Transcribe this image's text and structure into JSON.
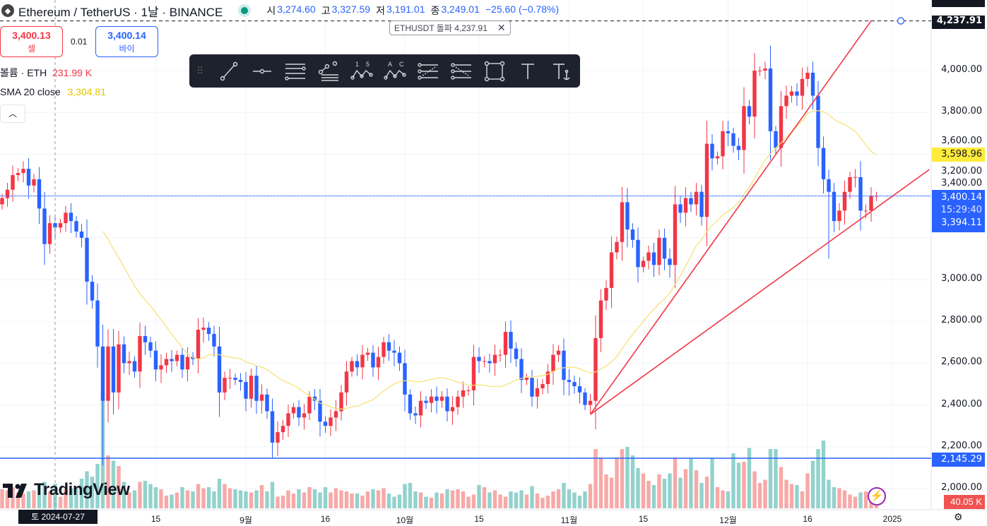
{
  "header": {
    "symbol": "Ethereum / TetherUS · 1날 · BINANCE",
    "o_label": "시",
    "o": "3,274.60",
    "h_label": "고",
    "h": "3,327.59",
    "l_label": "저",
    "l": "3,191.01",
    "c_label": "종",
    "c": "3,249.01",
    "change": "−25.60 (−0.78%)"
  },
  "trade": {
    "sell_price": "3,400.13",
    "sell_label": "셀",
    "spread": "0.01",
    "buy_price": "3,400.14",
    "buy_label": "바이"
  },
  "legend": {
    "volume_label": "볼륨 · ETH",
    "volume_value": "231.99 K",
    "sma_label": "SMA 20 close",
    "sma_value": "3,304.81"
  },
  "toolbar": {
    "tools": [
      "trend-line",
      "horizontal-ray",
      "parallel-channel",
      "pitchfork",
      "xabcd-pattern",
      "abcd-pattern",
      "long-position",
      "short-position",
      "rectangle",
      "text",
      "anchored-text"
    ]
  },
  "alert": {
    "label": "ETHUSDT 돌파 4,237.91",
    "close": "✕"
  },
  "price_axis": {
    "ticks": [
      "4,000.00",
      "3,800.00",
      "3,600.00",
      "3,400.00",
      "3,200.00",
      "3,000.00",
      "2,800.00",
      "2,600.00",
      "2,400.00",
      "2,200.00",
      "2,000.00"
    ],
    "alert_price": "4,237.91",
    "sma_price": "3,598.96",
    "last_price": "3,400.14",
    "countdown": "15:29:40",
    "last_close": "3,394.11",
    "hline_price": "2,145.29",
    "volume_last": "40.05 K"
  },
  "time_axis": {
    "crosshair_date": "토 2024-07-27",
    "labels": [
      {
        "t": "15",
        "i": 29
      },
      {
        "t": "9월",
        "i": 46
      },
      {
        "t": "16",
        "i": 61
      },
      {
        "t": "10월",
        "i": 76
      },
      {
        "t": "15",
        "i": 90
      },
      {
        "t": "11월",
        "i": 107
      },
      {
        "t": "15",
        "i": 121
      },
      {
        "t": "12월",
        "i": 137
      },
      {
        "t": "16",
        "i": 152
      },
      {
        "t": "2025",
        "i": 168
      }
    ]
  },
  "branding": {
    "logo": "TradingView"
  },
  "colors": {
    "up": "#f23645",
    "down": "#2962ff",
    "vol_up": "#f7a9a7",
    "vol_down": "#92d2cc",
    "sma": "#f7e27a",
    "drawing": "#f23645",
    "hline": "#2962ff"
  },
  "chart_data": {
    "type": "candlestick",
    "title": "Ethereum / TetherUS · 1D · BINANCE",
    "start_date": "2024-07-17",
    "end_date": "2024-12-29",
    "ylim": [
      1950,
      4300
    ],
    "close": [
      3390,
      3430,
      3500,
      3510,
      3530,
      3450,
      3480,
      3340,
      3170,
      3270,
      3249.01,
      3270,
      3320,
      3280,
      3230,
      3200,
      2990,
      2900,
      2680,
      2420,
      2680,
      2460,
      2690,
      2600,
      2610,
      2560,
      2730,
      2700,
      2660,
      2570,
      2590,
      2620,
      2610,
      2640,
      2570,
      2630,
      2620,
      2760,
      2770,
      2740,
      2680,
      2460,
      2530,
      2530,
      2520,
      2510,
      2430,
      2540,
      2420,
      2450,
      2370,
      2220,
      2270,
      2300,
      2360,
      2390,
      2340,
      2360,
      2440,
      2420,
      2320,
      2300,
      2340,
      2370,
      2460,
      2560,
      2610,
      2580,
      2640,
      2650,
      2580,
      2630,
      2700,
      2660,
      2650,
      2600,
      2450,
      2360,
      2350,
      2420,
      2410,
      2440,
      2420,
      2440,
      2370,
      2390,
      2440,
      2470,
      2470,
      2630,
      2610,
      2610,
      2600,
      2640,
      2640,
      2750,
      2670,
      2620,
      2520,
      2530,
      2440,
      2480,
      2500,
      2560,
      2640,
      2660,
      2520,
      2510,
      2490,
      2460,
      2400,
      2420,
      2720,
      2900,
      2960,
      3130,
      3180,
      3370,
      3240,
      3190,
      3060,
      3090,
      3130,
      3070,
      3200,
      3100,
      3070,
      3360,
      3320,
      3390,
      3360,
      3420,
      3300,
      3650,
      3580,
      3590,
      3710,
      3700,
      3640,
      3620,
      3830,
      3780,
      4000,
      4000,
      4010,
      3710,
      3630,
      3830,
      3880,
      3900,
      3880,
      3960,
      3990,
      3880,
      3630,
      3480,
      3420,
      3280,
      3330,
      3420,
      3490,
      3490,
      3330,
      3330,
      3400,
      3400.14
    ],
    "volume_k": [
      180,
      170,
      200,
      150,
      140,
      160,
      170,
      220,
      250,
      160,
      231.99,
      110,
      180,
      190,
      200,
      280,
      350,
      300,
      420,
      1100,
      500,
      450,
      400,
      250,
      150,
      170,
      250,
      260,
      230,
      200,
      180,
      120,
      130,
      150,
      200,
      170,
      160,
      230,
      190,
      200,
      160,
      280,
      230,
      190,
      180,
      170,
      160,
      150,
      170,
      220,
      160,
      250,
      110,
      120,
      170,
      140,
      180,
      150,
      200,
      180,
      150,
      200,
      150,
      190,
      170,
      160,
      140,
      140,
      120,
      160,
      180,
      170,
      190,
      140,
      110,
      130,
      230,
      240,
      160,
      150,
      110,
      100,
      150,
      140,
      180,
      170,
      180,
      160,
      110,
      130,
      220,
      200,
      150,
      170,
      130,
      110,
      160,
      150,
      170,
      130,
      210,
      140,
      100,
      120,
      160,
      180,
      240,
      180,
      150,
      120,
      160,
      230,
      560,
      480,
      320,
      290,
      480,
      560,
      580,
      500,
      380,
      330,
      260,
      220,
      320,
      280,
      330,
      480,
      290,
      370,
      470,
      360,
      240,
      300,
      470,
      200,
      170,
      160,
      520,
      430,
      440,
      570,
      350,
      240,
      270,
      560,
      560,
      390,
      270,
      230,
      220,
      160,
      330,
      450,
      560,
      640,
      270,
      200,
      190,
      170,
      130,
      110,
      150,
      160,
      100,
      40.05
    ],
    "notable_lows": [
      {
        "i": 19,
        "price": 2111
      },
      {
        "i": 156,
        "price": 3100
      }
    ],
    "sma_period": 20,
    "drawings": [
      {
        "type": "trend-line",
        "from": {
          "i": 111,
          "price": 2355
        },
        "to": {
          "i": 164,
          "price": 4237.91
        }
      },
      {
        "type": "trend-line",
        "from": {
          "i": 111,
          "price": 2355
        },
        "to": {
          "i": 175,
          "price": 3527
        }
      },
      {
        "type": "horizontal-line",
        "price": 2145.29
      },
      {
        "type": "alert-line",
        "price": 4237.91
      }
    ],
    "crosshair_index": 10
  }
}
